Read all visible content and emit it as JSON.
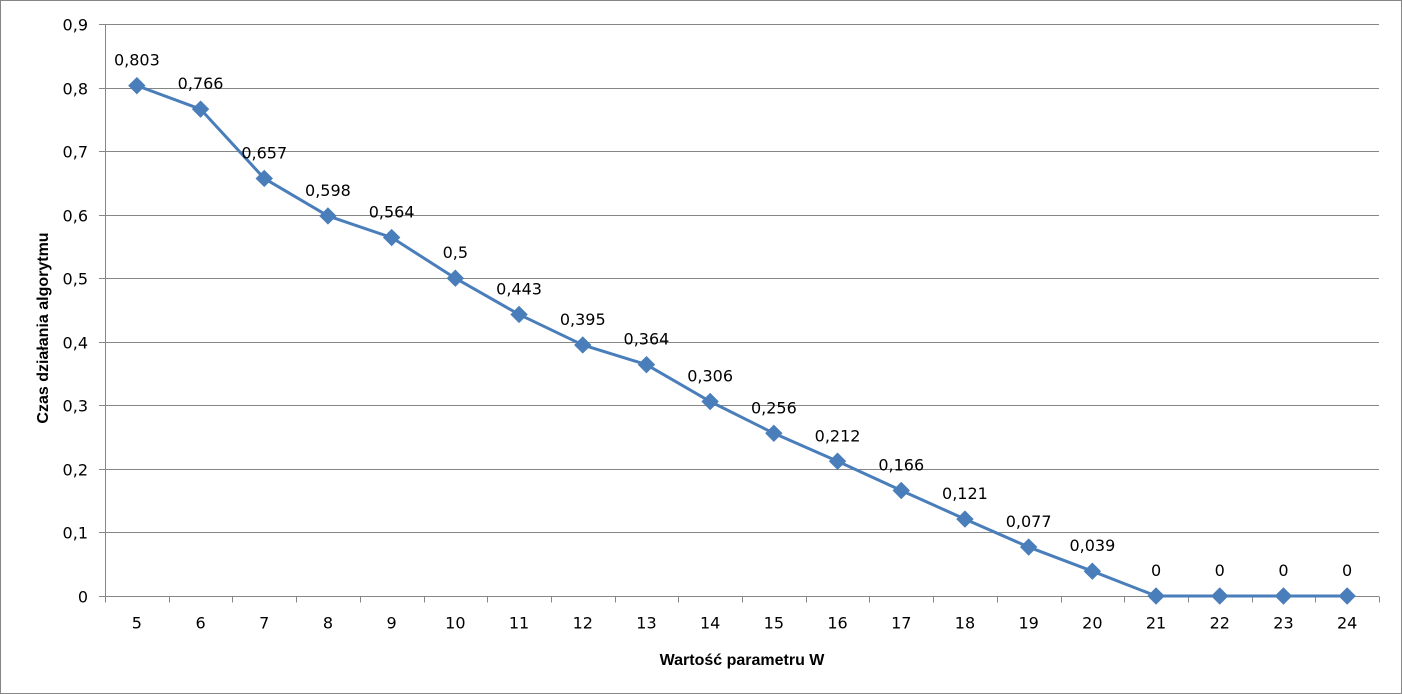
{
  "chart_data": {
    "type": "line",
    "title": "",
    "xlabel": "Wartość parametru W",
    "ylabel": "Czas działania algorytmu",
    "categories": [
      "5",
      "6",
      "7",
      "8",
      "9",
      "10",
      "11",
      "12",
      "13",
      "14",
      "15",
      "16",
      "17",
      "18",
      "19",
      "20",
      "21",
      "22",
      "23",
      "24"
    ],
    "series": [
      {
        "values": [
          0.803,
          0.766,
          0.657,
          0.598,
          0.564,
          0.5,
          0.443,
          0.395,
          0.364,
          0.306,
          0.256,
          0.212,
          0.166,
          0.121,
          0.077,
          0.039,
          0,
          0,
          0,
          0
        ],
        "data_labels": [
          "0,803",
          "0,766",
          "0,657",
          "0,598",
          "0,564",
          "0,5",
          "0,443",
          "0,395",
          "0,364",
          "0,306",
          "0,256",
          "0,212",
          "0,166",
          "0,121",
          "0,077",
          "0,039",
          "0",
          "0",
          "0",
          "0"
        ],
        "color": "#4a7ebb",
        "marker": "diamond"
      }
    ],
    "ylim": [
      0,
      0.9
    ],
    "yticks": [
      0,
      0.1,
      0.2,
      0.3,
      0.4,
      0.5,
      0.6,
      0.7,
      0.8,
      0.9
    ],
    "ytick_labels": [
      "0",
      "0,1",
      "0,2",
      "0,3",
      "0,4",
      "0,5",
      "0,6",
      "0,7",
      "0,8",
      "0,9"
    ],
    "grid": true,
    "legend": "none"
  }
}
